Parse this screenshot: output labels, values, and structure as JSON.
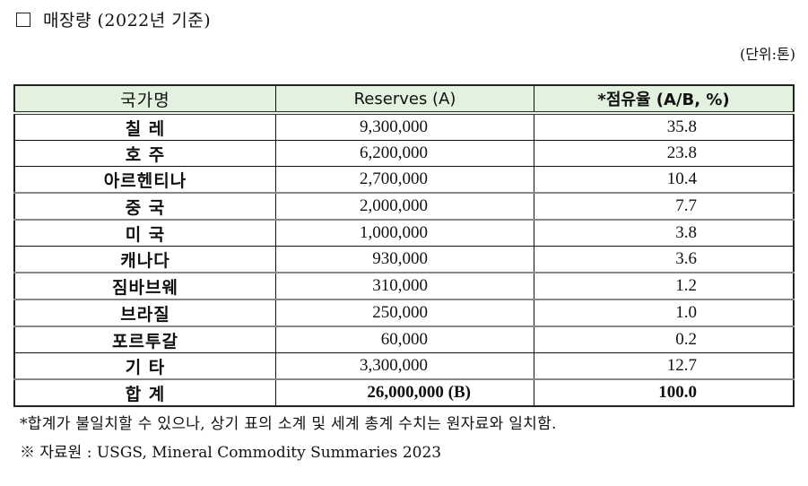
{
  "section": {
    "bullet_icon": "square-icon",
    "title": "매장량 (2022년 기준)"
  },
  "unit_label": "(단위:톤)",
  "table": {
    "header_bg": "#e3f1df",
    "columns": [
      "국가명",
      "Reserves (A)",
      "*점유율 (A/B, %)"
    ],
    "rows": [
      {
        "country": "칠 레",
        "reserves": "9,300,000",
        "share": "35.8"
      },
      {
        "country": "호 주",
        "reserves": "6,200,000",
        "share": "23.8"
      },
      {
        "country": "아르헨티나",
        "reserves": "2,700,000",
        "share": "10.4"
      },
      {
        "country": "중 국",
        "reserves": "2,000,000",
        "share": "7.7"
      },
      {
        "country": "미 국",
        "reserves": "1,000,000",
        "share": "3.8"
      },
      {
        "country": "캐나다",
        "reserves": "930,000",
        "share": "3.6"
      },
      {
        "country": "짐바브웨",
        "reserves": "310,000",
        "share": "1.2"
      },
      {
        "country": "브라질",
        "reserves": "250,000",
        "share": "1.0"
      },
      {
        "country": "포르투갈",
        "reserves": "60,000",
        "share": "0.2"
      },
      {
        "country": "기 타",
        "reserves": "3,300,000",
        "share": "12.7"
      }
    ],
    "total": {
      "country": "합 계",
      "reserves": "26,000,000 (B)",
      "share": "100.0"
    }
  },
  "notes": {
    "footnote": "*합계가 불일치할 수 있으나, 상기 표의 소계 및 세계 총계 수치는 원자료와 일치함.",
    "source": "※ 자료원 : USGS, Mineral Commodity Summaries 2023"
  }
}
